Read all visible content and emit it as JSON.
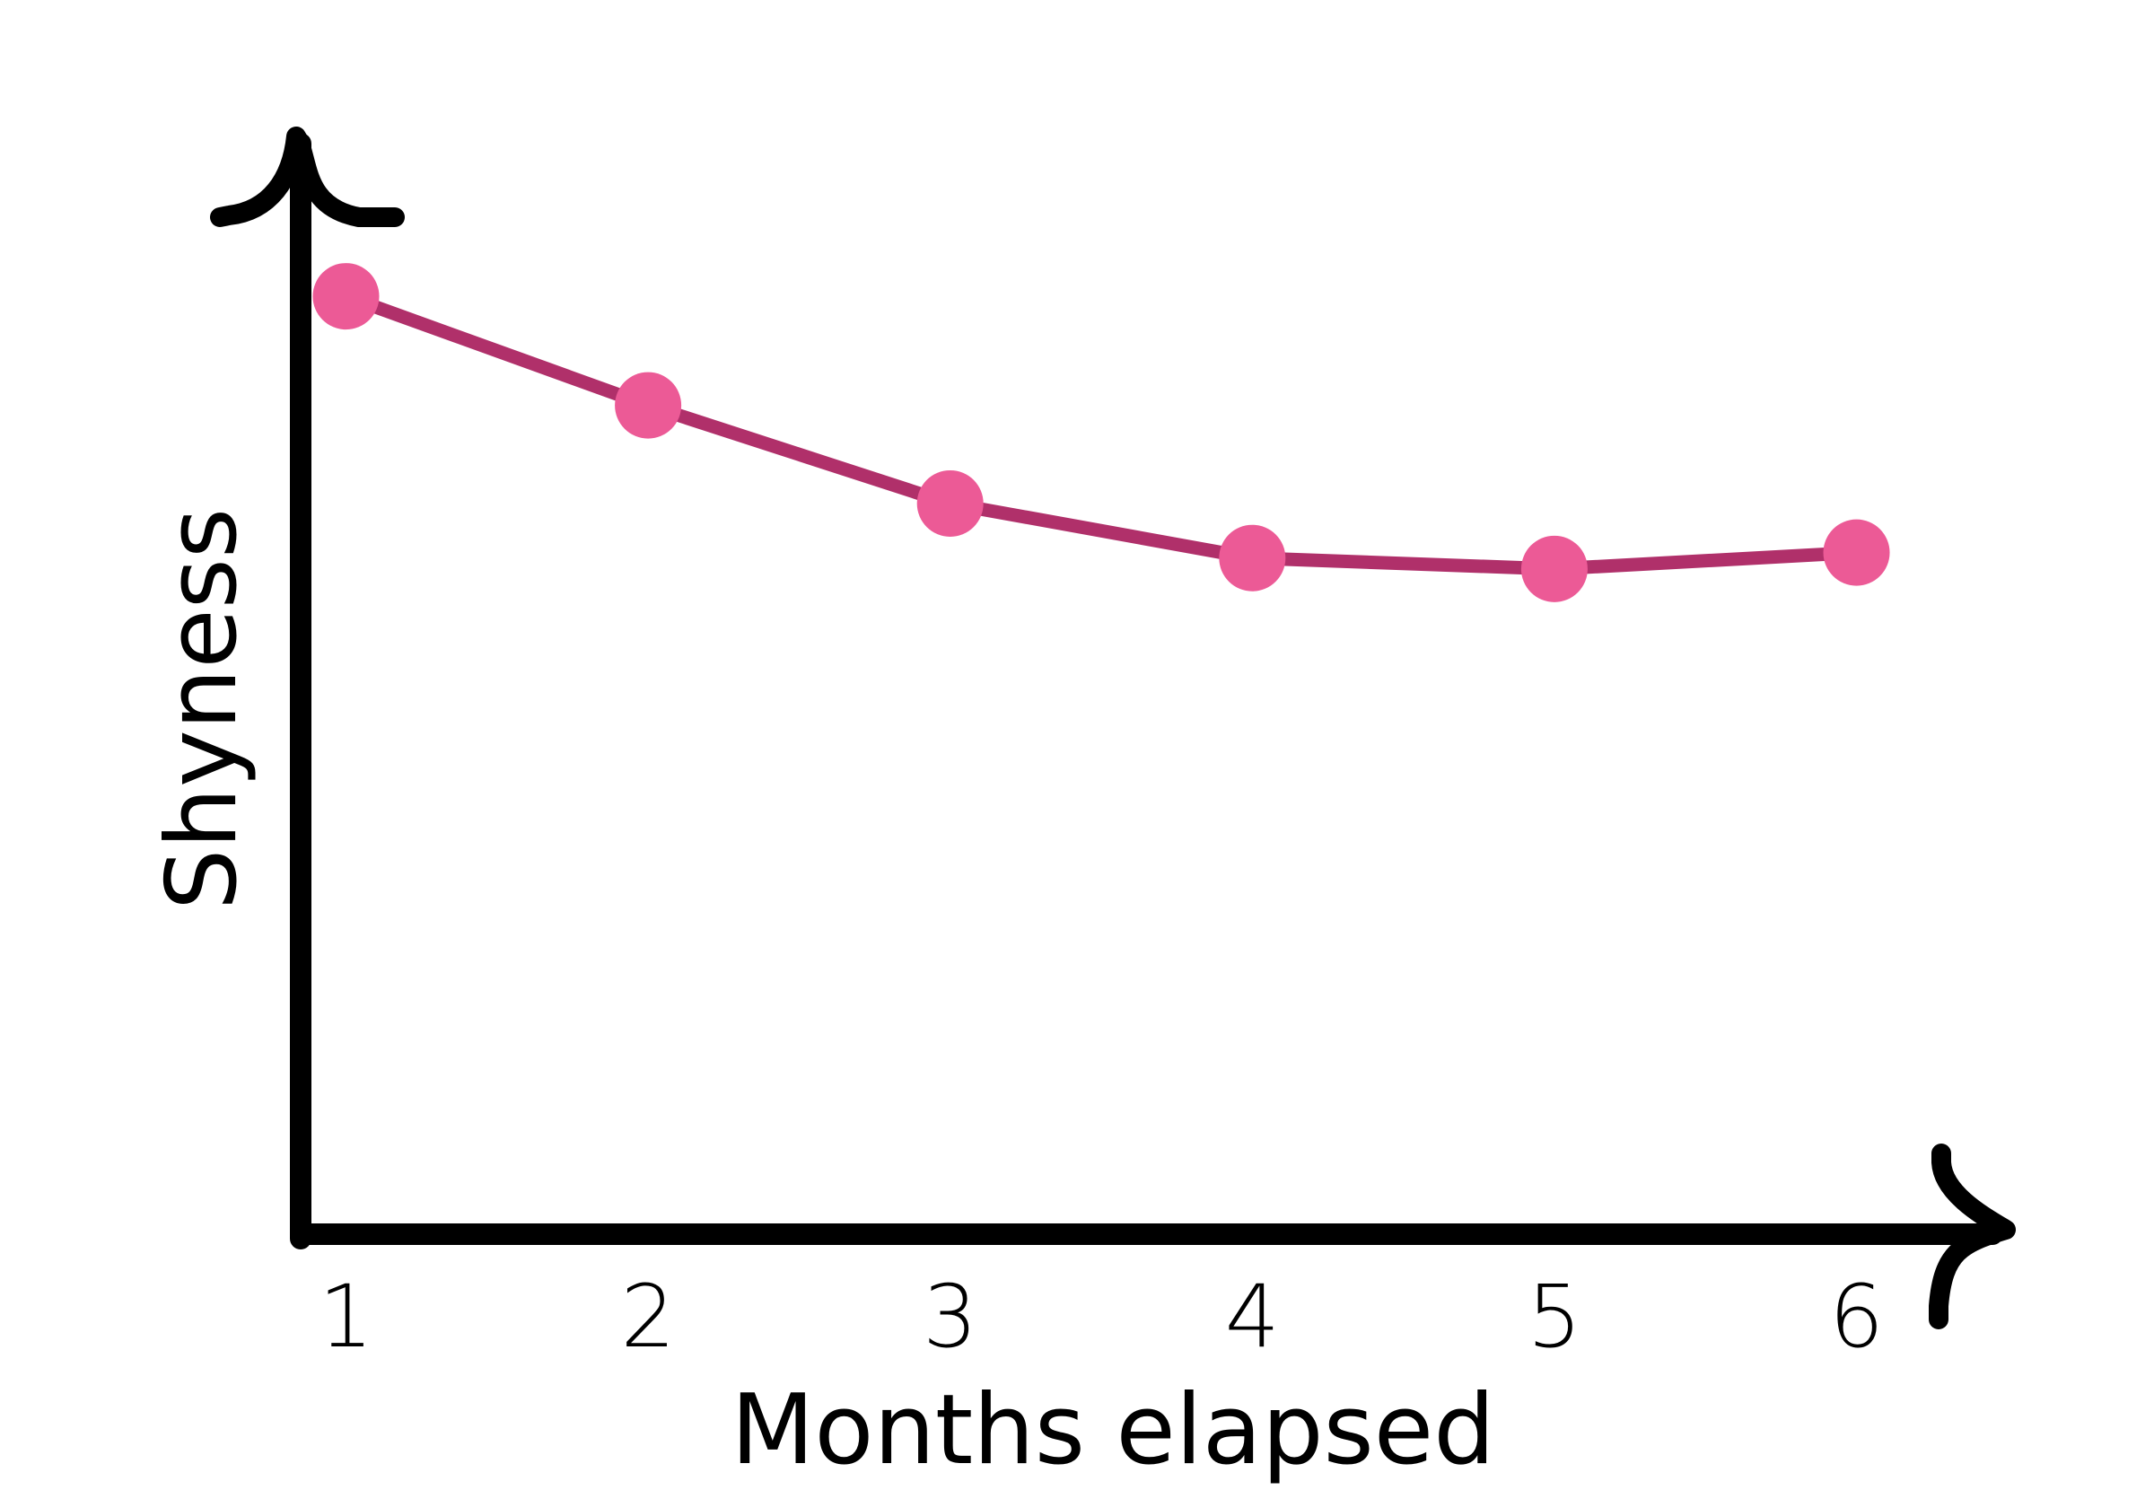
{
  "chart_data": {
    "type": "line",
    "title": "",
    "xlabel": "Months elapsed",
    "ylabel": "Shyness",
    "x": [
      1,
      2,
      3,
      4,
      5,
      6
    ],
    "xtick_labels": [
      "1",
      "2",
      "3",
      "4",
      "5",
      "6"
    ],
    "series": [
      {
        "values": [
          0.86,
          0.76,
          0.67,
          0.62,
          0.61,
          0.625
        ]
      }
    ],
    "xlim": [
      0.85,
      6.45
    ],
    "ylim": [
      0,
      1
    ],
    "yticks_visible": false,
    "grid": false,
    "legend": "none",
    "colors": {
      "axis": "#000000",
      "line": "#b0306a",
      "marker": "#ec5a96"
    }
  }
}
